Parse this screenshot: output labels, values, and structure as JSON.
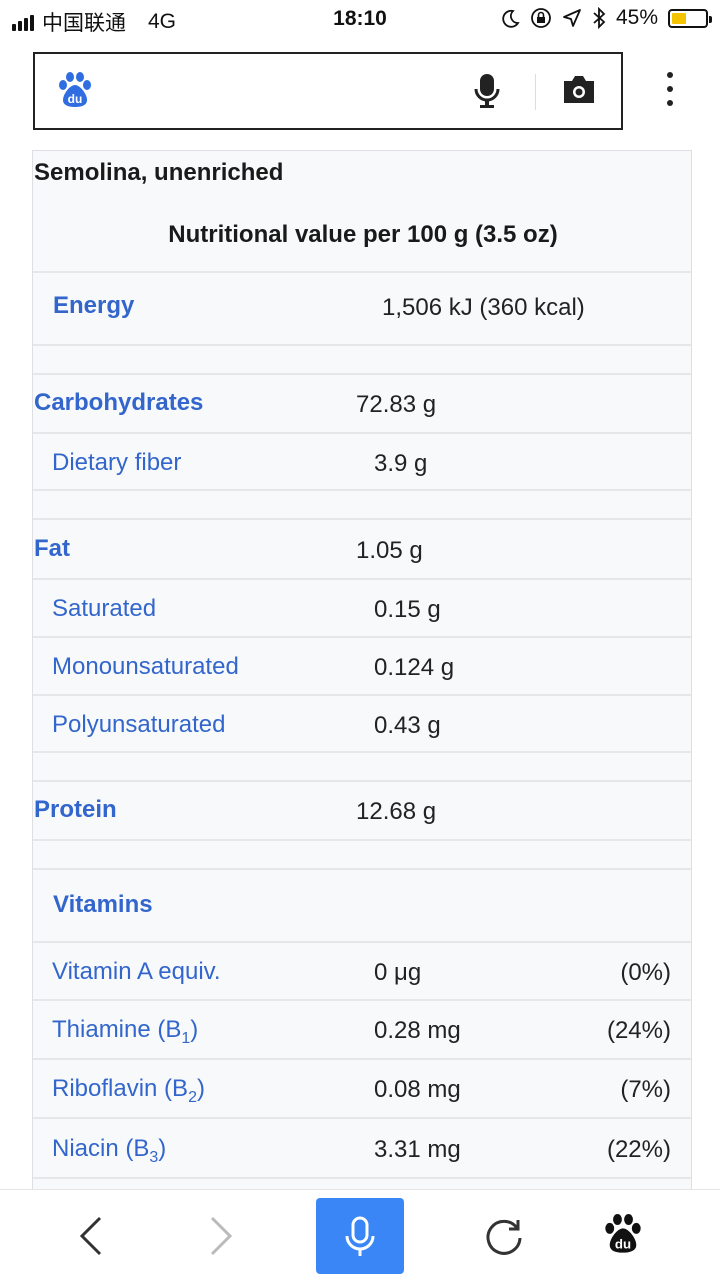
{
  "status_bar": {
    "carrier": "中国联通",
    "network": "4G",
    "time": "18:10",
    "battery_percent": "45%",
    "battery_level": 0.45
  },
  "search": {
    "logo_text": "du",
    "mic_icon": "microphone-icon",
    "camera_icon": "camera-icon"
  },
  "infobox": {
    "title": "Semolina, unenriched",
    "subtitle": "Nutritional value per 100 g (3.5 oz)",
    "energy": {
      "label": "Energy",
      "value": "1,506 kJ (360 kcal)"
    },
    "carbohydrates": {
      "label": "Carbohydrates",
      "value": "72.83 g"
    },
    "dietary_fiber": {
      "label": "Dietary fiber",
      "value": "3.9 g"
    },
    "fat": {
      "label": "Fat",
      "value": "1.05 g"
    },
    "saturated": {
      "label": "Saturated",
      "value": "0.15 g"
    },
    "monounsaturated": {
      "label": "Monounsaturated",
      "value": "0.124 g"
    },
    "polyunsaturated": {
      "label": "Polyunsaturated",
      "value": "0.43 g"
    },
    "protein": {
      "label": "Protein",
      "value": "12.68 g"
    },
    "vitamins_heading": "Vitamins",
    "vitamin_a": {
      "label": "Vitamin A equiv.",
      "value": "0 μg",
      "pct": "(0%)"
    },
    "thiamine": {
      "label": "Thiamine (B",
      "sub": "1",
      "close": ")",
      "value": "0.28 mg",
      "pct": "(24%)"
    },
    "riboflavin": {
      "label": "Riboflavin (B",
      "sub": "2",
      "close": ")",
      "value": "0.08 mg",
      "pct": "(7%)"
    },
    "niacin": {
      "label": "Niacin (B",
      "sub": "3",
      "close": ")",
      "value": "3.31 mg",
      "pct": "(22%)"
    }
  },
  "toolbar": {
    "back_icon": "chevron-left-icon",
    "forward_icon": "chevron-right-icon",
    "voice_icon": "microphone-icon",
    "refresh_icon": "refresh-icon",
    "home_icon": "baidu-paw-icon",
    "accent_color": "#3a86f7"
  },
  "colors": {
    "link": "#3366cc",
    "infobox_bg": "#f8f9fa"
  }
}
